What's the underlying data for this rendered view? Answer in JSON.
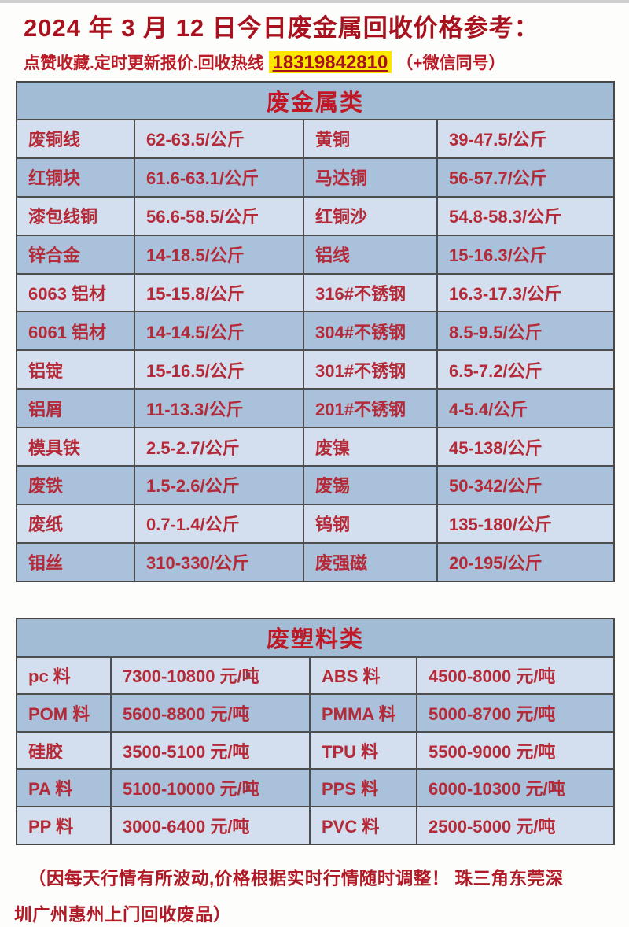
{
  "page": {
    "title": "2024 年 3 月 12 日今日废金属回收价格参考：",
    "subtitle_prefix": "点赞收藏.定时更新报价.回收热线",
    "phone": "18319842810",
    "subtitle_suffix": "（+微信同号）",
    "footer_line1": "（因每天行情有所波动,价格根据实时行情随时调整！ 珠三角东莞深",
    "footer_line2": "圳广州惠州上门回收废品）"
  },
  "colors": {
    "title_red": "#a8121e",
    "table_text_red": "#b52a38",
    "header_bg": "#a3bcd6",
    "row_light_bg": "#d3dfee",
    "row_dark_bg": "#a9c1db",
    "phone_highlight_yellow": "#fde600",
    "border_gray": "#4d4d4d"
  },
  "metals_table": {
    "header": "废金属类",
    "rows": [
      [
        "废铜线",
        "62-63.5/公斤",
        "黄铜",
        "39-47.5/公斤"
      ],
      [
        "红铜块",
        "61.6-63.1/公斤",
        "马达铜",
        "56-57.7/公斤"
      ],
      [
        "漆包线铜",
        "56.6-58.5/公斤",
        "红铜沙",
        "54.8-58.3/公斤"
      ],
      [
        "锌合金",
        "14-18.5/公斤",
        "铝线",
        "15-16.3/公斤"
      ],
      [
        "6063 铝材",
        "15-15.8/公斤",
        "316#不锈钢",
        "16.3-17.3/公斤"
      ],
      [
        "6061 铝材",
        "14-14.5/公斤",
        "304#不锈钢",
        "8.5-9.5/公斤"
      ],
      [
        "铝锭",
        "15-16.5/公斤",
        "301#不锈钢",
        "6.5-7.2/公斤"
      ],
      [
        "铝屑",
        "11-13.3/公斤",
        "201#不锈钢",
        "4-5.4/公斤"
      ],
      [
        "模具铁",
        "2.5-2.7/公斤",
        "废镍",
        "45-138/公斤"
      ],
      [
        "废铁",
        "1.5-2.6/公斤",
        "废锡",
        "50-342/公斤"
      ],
      [
        "废纸",
        "0.7-1.4/公斤",
        "钨钢",
        "135-180/公斤"
      ],
      [
        "钼丝",
        "310-330/公斤",
        "废强磁",
        "20-195/公斤"
      ]
    ]
  },
  "plastics_table": {
    "header": "废塑料类",
    "rows": [
      [
        "pc 料",
        "7300-10800 元/吨",
        "ABS 料",
        "4500-8000 元/吨"
      ],
      [
        "POM 料",
        "5600-8800 元/吨",
        "PMMA 料",
        "5000-8700 元/吨"
      ],
      [
        "硅胶",
        "3500-5100 元/吨",
        "TPU 料",
        "5500-9000 元/吨"
      ],
      [
        "PA 料",
        "5100-10000 元/吨",
        "PPS 料",
        "6000-10300 元/吨"
      ],
      [
        "PP 料",
        "3000-6400 元/吨",
        "PVC 料",
        "2500-5000 元/吨"
      ]
    ]
  }
}
